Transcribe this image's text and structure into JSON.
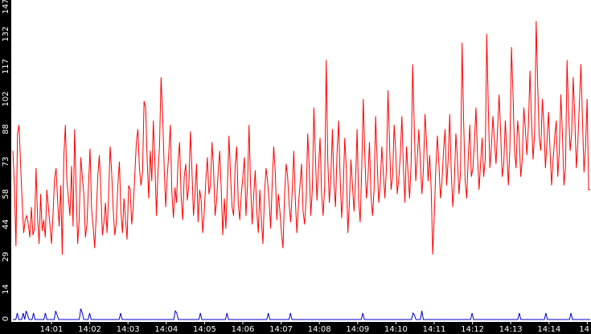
{
  "chart_data": {
    "type": "line",
    "title": "",
    "xlabel": "",
    "ylabel": "",
    "ylim": [
      0,
      147
    ],
    "x_tick_labels": [
      "14:01",
      "14:02",
      "14:03",
      "14:04",
      "14:05",
      "14:06",
      "14:07",
      "14:08",
      "14:09",
      "14:10",
      "14:11",
      "14:12",
      "14:13",
      "14:14",
      "14"
    ],
    "y_tick_labels": [
      "0",
      "14",
      "29",
      "44",
      "58",
      "73",
      "88",
      "102",
      "117",
      "132",
      "147"
    ],
    "grid": false,
    "background": "#ffffff",
    "axis_band_color": "#000000",
    "series": [
      {
        "color": "#ff0000",
        "values": [
          78,
          62,
          34,
          86,
          90,
          72,
          55,
          40,
          46,
          48,
          44,
          38,
          52,
          39,
          42,
          70,
          47,
          35,
          58,
          41,
          46,
          38,
          60,
          52,
          44,
          35,
          48,
          65,
          70,
          55,
          43,
          62,
          30,
          75,
          90,
          64,
          56,
          48,
          71,
          43,
          88,
          60,
          35,
          47,
          75,
          66,
          58,
          38,
          44,
          62,
          79,
          51,
          43,
          33,
          48,
          66,
          76,
          59,
          39,
          45,
          54,
          40,
          57,
          80,
          68,
          51,
          39,
          45,
          62,
          73,
          50,
          40,
          56,
          46,
          37,
          62,
          60,
          44,
          52,
          67,
          82,
          88,
          70,
          62,
          68,
          101,
          98,
          74,
          56,
          78,
          64,
          92,
          73,
          48,
          68,
          80,
          112,
          95,
          71,
          52,
          66,
          77,
          90,
          59,
          47,
          61,
          54,
          73,
          82,
          57,
          46,
          66,
          72,
          55,
          62,
          87,
          69,
          48,
          58,
          72,
          45,
          60,
          55,
          40,
          50,
          64,
          75,
          58,
          62,
          82,
          70,
          48,
          55,
          68,
          78,
          60,
          39,
          56,
          42,
          62,
          85,
          67,
          52,
          48,
          71,
          80,
          54,
          46,
          58,
          66,
          75,
          48,
          62,
          90,
          62,
          44,
          57,
          69,
          50,
          40,
          60,
          46,
          35,
          58,
          70,
          64,
          55,
          42,
          63,
          80,
          68,
          46,
          58,
          50,
          40,
          33,
          57,
          72,
          66,
          53,
          45,
          60,
          78,
          55,
          40,
          53,
          62,
          72,
          50,
          44,
          56,
          86,
          70,
          48,
          60,
          98,
          75,
          55,
          70,
          84,
          58,
          48,
          62,
          120,
          74,
          54,
          66,
          88,
          63,
          52,
          77,
          92,
          66,
          47,
          60,
          84,
          70,
          40,
          54,
          74,
          62,
          50,
          64,
          88,
          55,
          45,
          70,
          102,
          76,
          56,
          65,
          82,
          57,
          48,
          60,
          94,
          73,
          54,
          62,
          80,
          68,
          56,
          70,
          106,
          82,
          60,
          66,
          90,
          78,
          58,
          65,
          76,
          94,
          70,
          54,
          80,
          68,
          56,
          72,
          118,
          90,
          64,
          75,
          88,
          72,
          58,
          70,
          95,
          82,
          64,
          76,
          60,
          30,
          48,
          70,
          85,
          72,
          56,
          64,
          78,
          88,
          62,
          74,
          95,
          68,
          52,
          64,
          86,
          74,
          58,
          68,
          128,
          92,
          64,
          56,
          75,
          90,
          66,
          70,
          82,
          98,
          76,
          60,
          72,
          84,
          66,
          74,
          132,
          98,
          70,
          80,
          94,
          82,
          72,
          88,
          104,
          86,
          66,
          72,
          92,
          78,
          62,
          80,
          126,
          104,
          78,
          70,
          92,
          84,
          66,
          74,
          98,
          88,
          76,
          90,
          115,
          92,
          74,
          86,
          138,
          108,
          84,
          78,
          102,
          90,
          70,
          82,
          96,
          78,
          62,
          74,
          84,
          92,
          66,
          78,
          104,
          86,
          62,
          70,
          120,
          96,
          78,
          86,
          112,
          94,
          70,
          82,
          100,
          118,
          92,
          68,
          80,
          102,
          60,
          60
        ]
      },
      {
        "color": "#0000cc",
        "values": [
          0,
          0,
          0,
          3,
          0,
          0,
          0,
          3,
          0,
          4,
          2,
          0,
          0,
          0,
          3,
          0,
          0,
          0,
          0,
          0,
          0,
          0,
          3,
          0,
          0,
          0,
          0,
          0,
          0,
          4,
          2,
          0,
          0,
          0,
          0,
          0,
          0,
          0,
          0,
          0,
          0,
          0,
          0,
          0,
          0,
          0,
          5,
          3,
          0,
          0,
          0,
          0,
          3,
          0,
          0,
          0,
          0,
          0,
          0,
          0,
          0,
          0,
          0,
          0,
          0,
          0,
          0,
          0,
          0,
          0,
          0,
          0,
          0,
          3,
          0,
          0,
          0,
          0,
          0,
          0,
          0,
          0,
          0,
          0,
          0,
          0,
          0,
          0,
          0,
          0,
          0,
          0,
          0,
          0,
          0,
          0,
          0,
          0,
          0,
          0,
          0,
          0,
          0,
          0,
          0,
          0,
          0,
          0,
          0,
          0,
          4,
          3,
          0,
          0,
          0,
          0,
          0,
          0,
          0,
          0,
          0,
          0,
          0,
          0,
          0,
          0,
          0,
          3,
          0,
          0,
          0,
          0,
          0,
          0,
          0,
          0,
          0,
          0,
          0,
          0,
          0,
          0,
          0,
          0,
          0,
          3,
          0,
          0,
          0,
          0,
          0,
          0,
          0,
          0,
          0,
          0,
          0,
          0,
          0,
          0,
          0,
          0,
          0,
          0,
          0,
          0,
          0,
          0,
          0,
          0,
          0,
          0,
          0,
          3,
          0,
          0,
          0,
          0,
          0,
          0,
          0,
          0,
          0,
          0,
          0,
          0,
          0,
          0,
          3,
          0,
          0,
          0,
          0,
          0,
          0,
          0,
          0,
          0,
          0,
          0,
          0,
          0,
          0,
          0,
          0,
          0,
          0,
          0,
          0,
          0,
          0,
          0,
          0,
          0,
          0,
          0,
          0,
          0,
          0,
          0,
          0,
          0,
          0,
          0,
          0,
          0,
          0,
          0,
          0,
          0,
          0,
          0,
          0,
          0,
          0,
          0,
          0,
          3,
          0,
          0,
          0,
          0,
          0,
          0,
          0,
          0,
          0,
          0,
          0,
          0,
          0,
          0,
          0,
          0,
          0,
          0,
          0,
          0,
          0,
          0,
          0,
          0,
          0,
          0,
          0,
          0,
          0,
          0,
          0,
          0,
          0,
          3,
          2,
          0,
          0,
          0,
          0,
          4,
          0,
          0,
          0,
          0,
          0,
          0,
          0,
          0,
          0,
          0,
          0,
          0,
          0,
          0,
          0,
          0,
          0,
          0,
          0,
          0,
          0,
          0,
          0,
          0,
          0,
          0,
          0,
          0,
          0,
          0,
          0,
          0,
          0,
          3,
          0,
          0,
          0,
          0,
          0,
          0,
          0,
          0,
          0,
          0,
          0,
          0,
          0,
          0,
          0,
          0,
          0,
          0,
          0,
          0,
          0,
          0,
          0,
          0,
          0,
          0,
          0,
          0,
          0,
          0,
          0,
          3,
          0,
          0,
          0,
          0,
          0,
          0,
          0,
          0,
          0,
          0,
          0,
          0,
          0,
          0,
          0,
          0,
          0,
          3,
          0,
          0,
          0,
          0,
          0,
          0,
          0,
          0,
          0,
          0,
          0,
          0,
          0,
          0,
          0,
          0,
          3,
          0,
          0,
          0,
          0,
          0,
          0,
          0,
          0,
          0,
          0,
          0,
          0,
          0
        ]
      }
    ]
  }
}
